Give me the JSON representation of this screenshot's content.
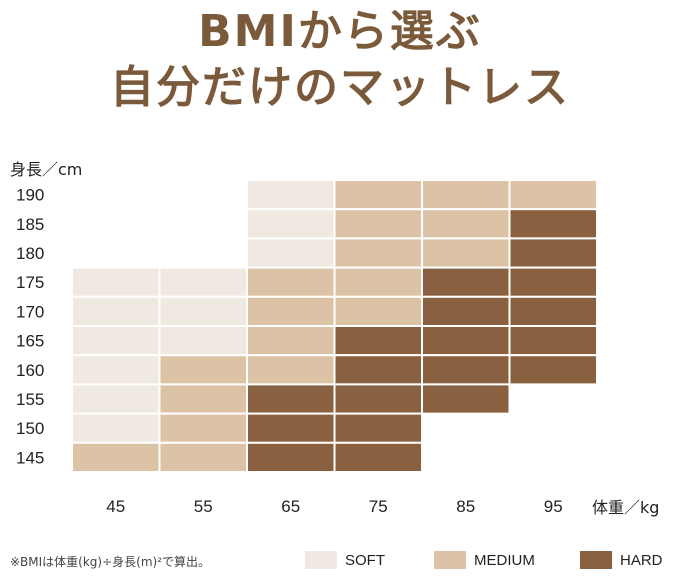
{
  "title_line_1": "BMIから選ぶ",
  "title_line_2": "自分だけのマットレス",
  "footnote": "※BMIは体重(kg)÷身長(m)²で算出。",
  "colors": {
    "title": "#7a5a3a",
    "soft": "#efe9e1",
    "medium": "#dcc3a6",
    "hard": "#8a6140",
    "grid_line": "#ffffff"
  },
  "chart_data": {
    "type": "heatmap",
    "xlabel": "体重／kg",
    "ylabel": "身長／cm",
    "x_ticks": [
      "45",
      "55",
      "65",
      "75",
      "85",
      "95"
    ],
    "y_ticks": [
      "190",
      "185",
      "180",
      "175",
      "170",
      "165",
      "160",
      "155",
      "150",
      "145"
    ],
    "legend": [
      {
        "key": "S",
        "label": "SOFT"
      },
      {
        "key": "M",
        "label": "MEDIUM"
      },
      {
        "key": "H",
        "label": "HARD"
      }
    ],
    "grid": [
      [
        "",
        "",
        "S",
        "M",
        "M",
        "M"
      ],
      [
        "",
        "",
        "S",
        "M",
        "M",
        "H"
      ],
      [
        "",
        "",
        "S",
        "M",
        "M",
        "H"
      ],
      [
        "S",
        "S",
        "M",
        "M",
        "H",
        "H"
      ],
      [
        "S",
        "S",
        "M",
        "M",
        "H",
        "H"
      ],
      [
        "S",
        "S",
        "M",
        "H",
        "H",
        "H"
      ],
      [
        "S",
        "M",
        "M",
        "H",
        "H",
        "H"
      ],
      [
        "S",
        "M",
        "H",
        "H",
        "H",
        ""
      ],
      [
        "S",
        "M",
        "H",
        "H",
        "",
        ""
      ],
      [
        "M",
        "M",
        "H",
        "H",
        "",
        ""
      ]
    ]
  }
}
